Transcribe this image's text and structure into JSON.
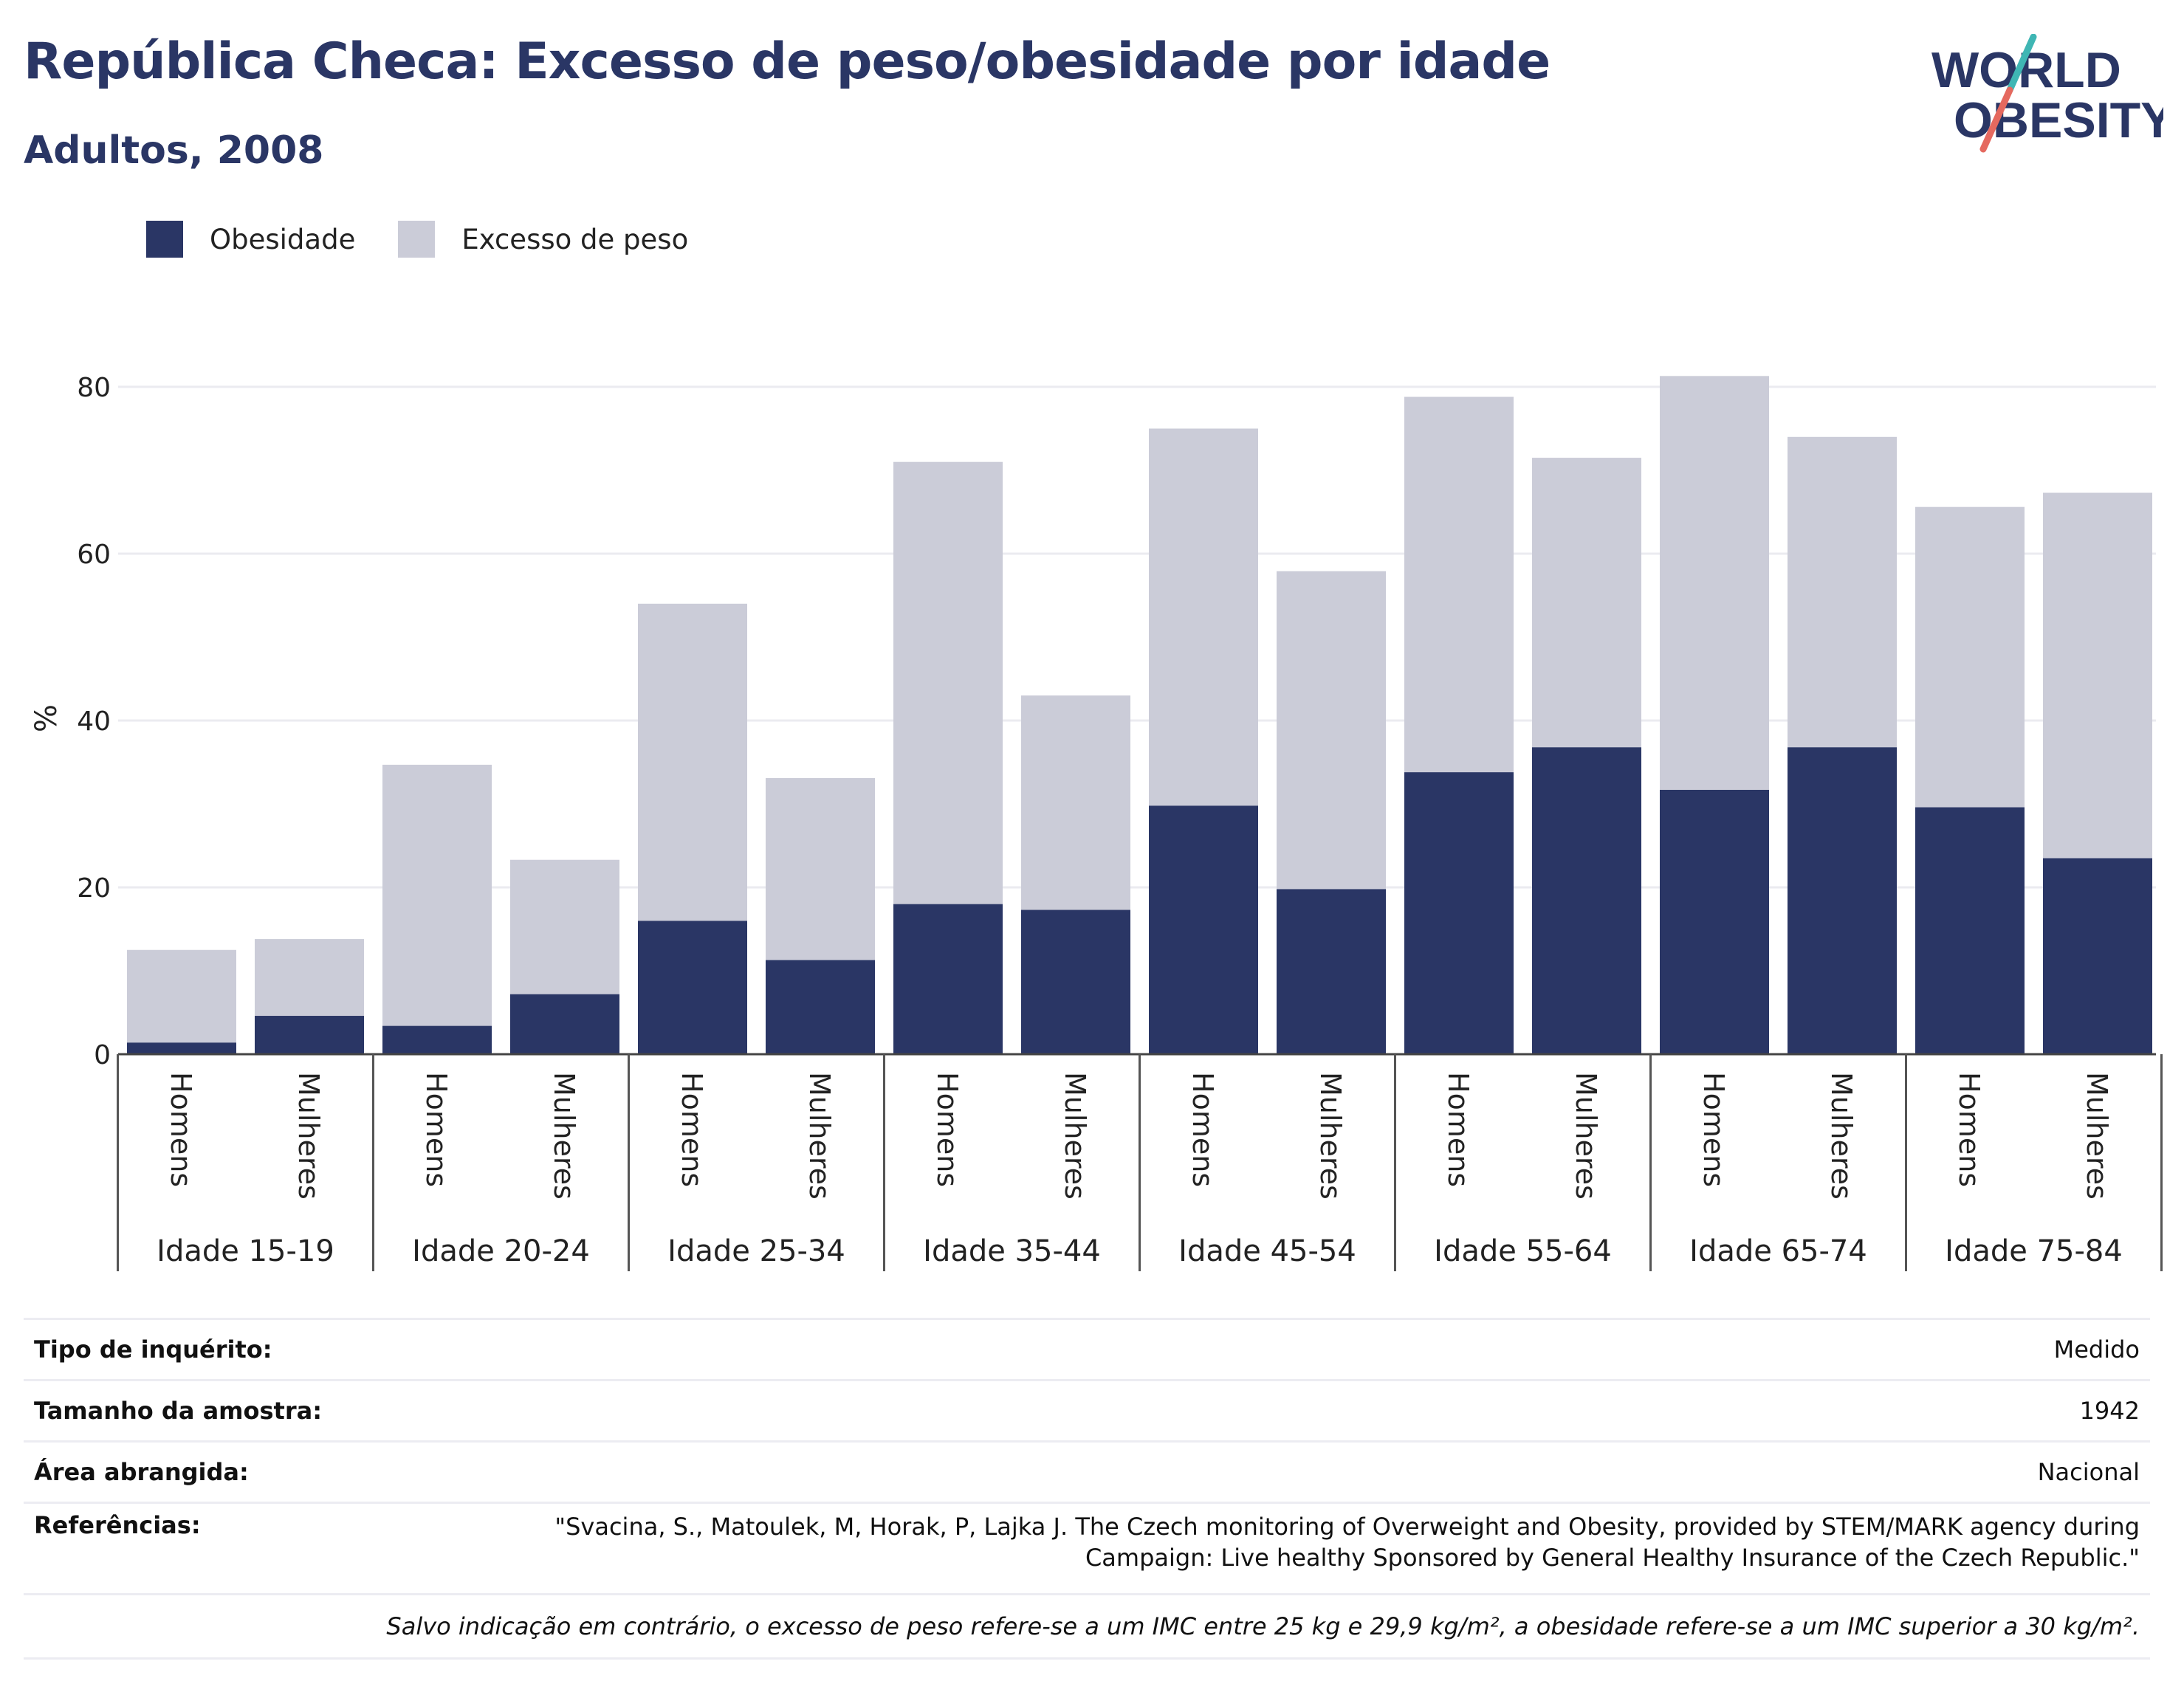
{
  "header": {
    "title": "República Checa: Excesso de peso/obesidade por idade",
    "subtitle": "Adultos, 2008"
  },
  "logo": {
    "line1": "WORLD",
    "line2": "OBESITY"
  },
  "legend": [
    {
      "label": "Obesidade",
      "color": "#2a3665"
    },
    {
      "label": "Excesso de peso",
      "color": "#cbccd8"
    }
  ],
  "chart_data": {
    "type": "bar",
    "stacked": true,
    "title": "República Checa: Excesso de peso/obesidade por idade",
    "subtitle": "Adultos, 2008",
    "ylabel": "%",
    "ylim": [
      0,
      90
    ],
    "yticks": [
      0,
      20,
      40,
      60,
      80
    ],
    "grid": true,
    "legend_position": "top-left",
    "groups": [
      "Idade 15-19",
      "Idade 20-24",
      "Idade 25-34",
      "Idade 35-44",
      "Idade 45-54",
      "Idade 55-64",
      "Idade 65-74",
      "Idade 75-84"
    ],
    "subcategories": [
      "Homens",
      "Mulheres"
    ],
    "series": [
      {
        "name": "Obesidade",
        "color": "#2a3665",
        "values": [
          1.4,
          4.6,
          3.4,
          7.2,
          16.0,
          11.3,
          18.0,
          17.3,
          29.8,
          19.8,
          33.8,
          36.8,
          31.7,
          36.8,
          29.6,
          23.5
        ]
      },
      {
        "name": "Excesso de peso",
        "color": "#cbccd8",
        "values": [
          11.1,
          9.2,
          31.3,
          16.1,
          38.0,
          21.8,
          53.0,
          25.7,
          45.2,
          38.1,
          45.0,
          34.7,
          49.6,
          37.2,
          36.0,
          43.8
        ]
      }
    ]
  },
  "info": {
    "survey_type_label": "Tipo de inquérito:",
    "survey_type_value": "Medido",
    "sample_size_label": "Tamanho da amostra:",
    "sample_size_value": "1942",
    "area_label": "Área abrangida:",
    "area_value": "Nacional",
    "references_label": "Referências:",
    "references_value": "\"Svacina, S., Matoulek, M, Horak, P, Lajka J. The Czech monitoring of Overweight and Obesity, provided by STEM/MARK agency during Campaign: Live healthy Sponsored by General Healthy Insurance of the Czech Republic.\"",
    "note": "Salvo indicação em contrário, o excesso de peso refere-se a um IMC entre 25 kg e 29,9 kg/m², a obesidade refere-se a um IMC superior a 30 kg/m²."
  }
}
